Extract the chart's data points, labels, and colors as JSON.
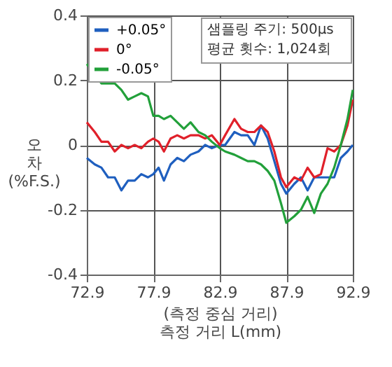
{
  "chart_data": {
    "type": "line",
    "x": [
      72.9,
      73.5,
      74,
      74.5,
      75,
      75.5,
      76,
      76.5,
      77,
      77.5,
      77.9,
      78.3,
      78.7,
      79.2,
      79.7,
      80.2,
      80.7,
      81.3,
      81.8,
      82.3,
      82.9,
      83.3,
      84,
      84.5,
      85,
      85.5,
      86,
      86.5,
      87,
      87.5,
      87.9,
      88.5,
      89,
      89.5,
      90,
      90.5,
      91,
      91.5,
      92,
      92.5,
      92.9
    ],
    "series": [
      {
        "name": "+0.05°",
        "color": "#1f5fbf",
        "values": [
          -0.04,
          -0.06,
          -0.07,
          -0.1,
          -0.1,
          -0.14,
          -0.11,
          -0.11,
          -0.09,
          -0.1,
          -0.09,
          -0.07,
          -0.11,
          -0.06,
          -0.04,
          -0.05,
          -0.03,
          -0.02,
          0.0,
          -0.01,
          0.0,
          0.0,
          0.04,
          0.03,
          0.03,
          0.0,
          0.06,
          0.02,
          -0.05,
          -0.12,
          -0.15,
          -0.12,
          -0.1,
          -0.14,
          -0.1,
          -0.1,
          -0.1,
          -0.1,
          -0.04,
          -0.02,
          0.0
        ]
      },
      {
        "name": "0°",
        "color": "#e0202a",
        "values": [
          0.07,
          0.04,
          0.01,
          0.01,
          -0.02,
          0.0,
          -0.01,
          0.0,
          -0.01,
          0.01,
          0.02,
          0.01,
          -0.02,
          0.02,
          0.03,
          0.02,
          0.03,
          0.03,
          0.02,
          0.03,
          0.0,
          0.03,
          0.08,
          0.05,
          0.04,
          0.04,
          0.06,
          0.04,
          -0.02,
          -0.1,
          -0.13,
          -0.1,
          -0.11,
          -0.07,
          -0.1,
          -0.09,
          -0.01,
          -0.02,
          0.0,
          0.06,
          0.14
        ]
      },
      {
        "name": "-0.05°",
        "color": "#22a03a",
        "values": [
          0.25,
          0.22,
          0.19,
          0.19,
          0.19,
          0.17,
          0.14,
          0.15,
          0.16,
          0.15,
          0.09,
          0.09,
          0.08,
          0.09,
          0.07,
          0.05,
          0.07,
          0.04,
          0.03,
          0.01,
          -0.01,
          -0.02,
          -0.03,
          -0.04,
          -0.05,
          -0.05,
          -0.06,
          -0.08,
          -0.11,
          -0.18,
          -0.24,
          -0.22,
          -0.2,
          -0.16,
          -0.21,
          -0.15,
          -0.12,
          -0.07,
          0.0,
          0.08,
          0.17
        ]
      }
    ],
    "xlim": [
      72.9,
      92.9
    ],
    "xticks": [
      72.9,
      77.9,
      82.9,
      87.9,
      92.9
    ],
    "ylim": [
      -0.4,
      0.4
    ],
    "yticks": [
      -0.4,
      -0.2,
      0,
      0.2,
      0.4
    ],
    "xlabel": "(측정 중심 거리)\n측정 거리 L(mm)",
    "ylabel": "오차\n(%F.S.)",
    "annotations": [
      "샘플링 주기: 500μs",
      "평균 횟수: 1,024회"
    ],
    "grid": true,
    "legend": "top left",
    "line_style": "solid",
    "marker": "none"
  }
}
